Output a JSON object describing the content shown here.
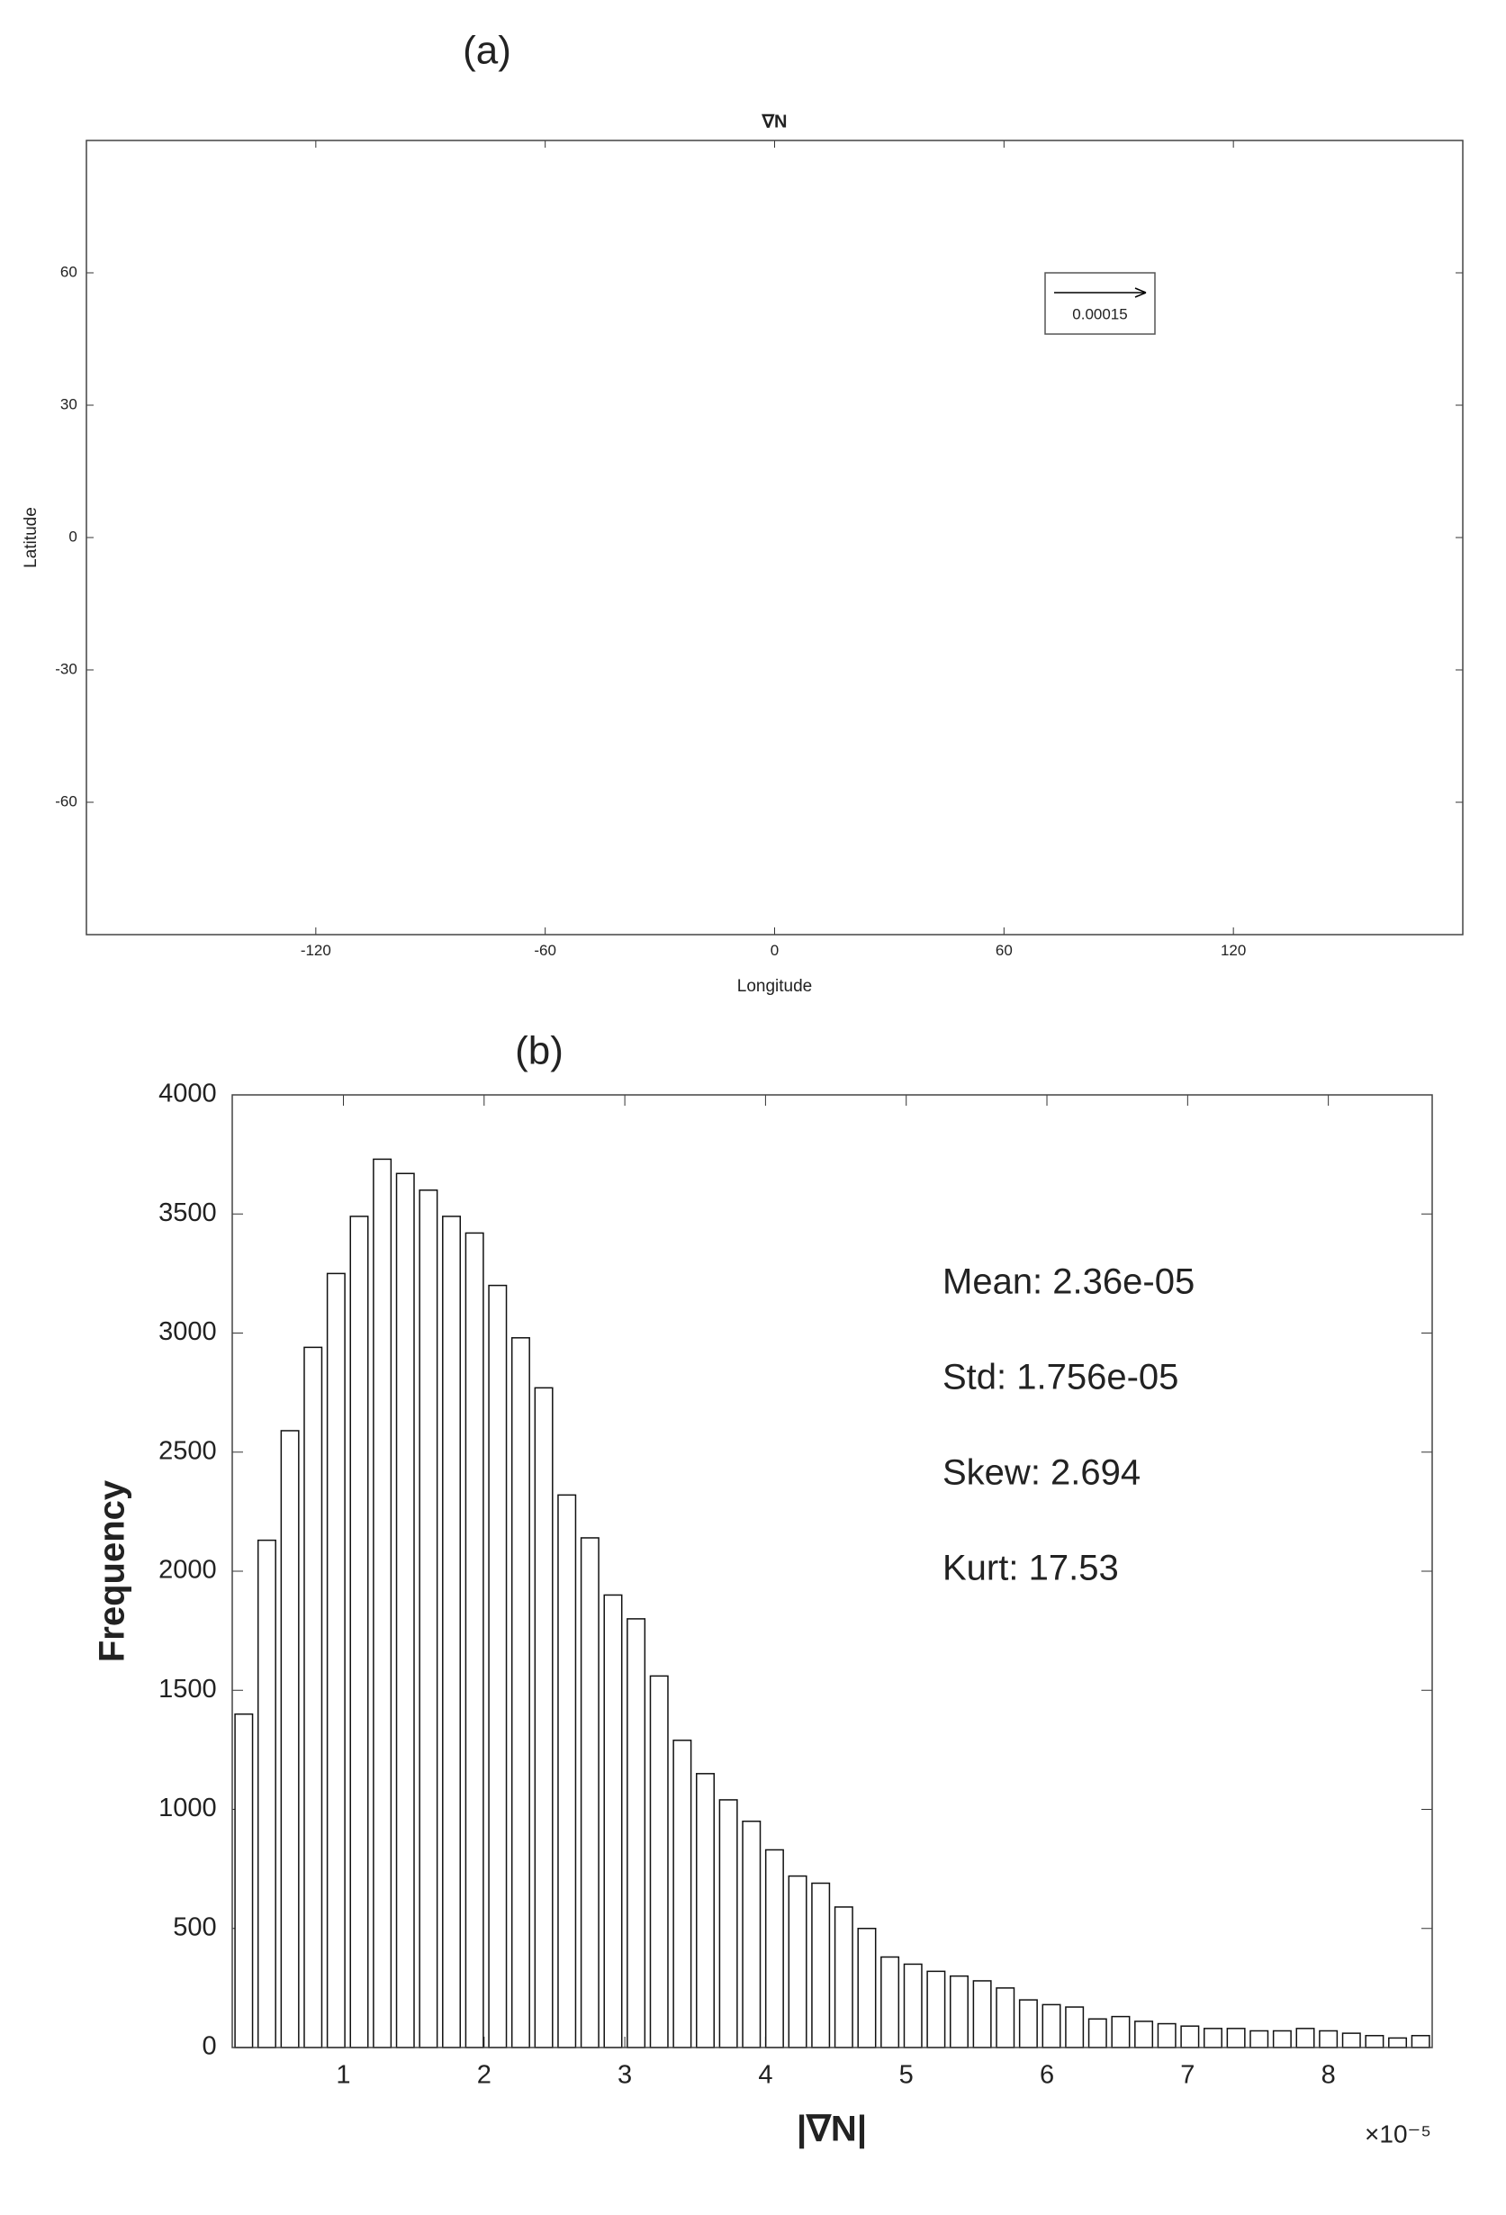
{
  "chart_data": [
    {
      "type": "quiver",
      "panel_label": "(a)",
      "title": "∇N",
      "x_label": "Longitude",
      "y_label": "Latitude",
      "xlim": [
        -180,
        180
      ],
      "ylim": [
        -90,
        90
      ],
      "xticks": [
        -120,
        -60,
        0,
        60,
        120
      ],
      "yticks": [
        -60,
        -30,
        0,
        30,
        60
      ],
      "reference_vector": 0.00015,
      "color": "#000000"
    },
    {
      "type": "histogram",
      "panel_label": "(b)",
      "x_label": "|∇N|",
      "y_label": "Frequency",
      "x_exponent_label": "×10⁻⁵",
      "bins": [
        0.21,
        0.374,
        0.538,
        0.702,
        0.866,
        1.03,
        1.194,
        1.358,
        1.522,
        1.686,
        1.85,
        2.014,
        2.178,
        2.342,
        2.506,
        2.67,
        2.834,
        2.998,
        3.162,
        3.326,
        3.49,
        3.654,
        3.818,
        3.982,
        4.146,
        4.31,
        4.474,
        4.638,
        4.802,
        4.966,
        5.13,
        5.294,
        5.458,
        5.622,
        5.786,
        5.95,
        6.114,
        6.278,
        6.442,
        6.606,
        6.77,
        6.934,
        7.098,
        7.262,
        7.426,
        7.59,
        7.754,
        7.918,
        8.082,
        8.246,
        8.41,
        8.574,
        8.738
      ],
      "values": [
        1400,
        2130,
        2590,
        2940,
        3250,
        3490,
        3730,
        3670,
        3600,
        3490,
        3420,
        3200,
        2980,
        2770,
        2320,
        2140,
        1900,
        1800,
        1560,
        1290,
        1150,
        1040,
        950,
        830,
        720,
        690,
        590,
        500,
        380,
        350,
        320,
        300,
        280,
        250,
        200,
        180,
        170,
        120,
        130,
        110,
        100,
        90,
        80,
        80,
        70,
        70,
        80,
        70,
        60,
        50,
        40,
        50
      ],
      "color": "#ffffff",
      "xlim": [
        0.21,
        8.738
      ],
      "ylim": [
        0,
        4000
      ],
      "xticks": [
        1,
        2,
        3,
        4,
        5,
        6,
        7,
        8
      ],
      "yticks": [
        0,
        500,
        1000,
        1500,
        2000,
        2500,
        3000,
        3500,
        4000
      ],
      "annotations": [
        "Mean: 2.36e-05",
        "Std: 1.756e-05",
        "Skew: 2.694",
        "Kurt: 17.53"
      ]
    }
  ]
}
